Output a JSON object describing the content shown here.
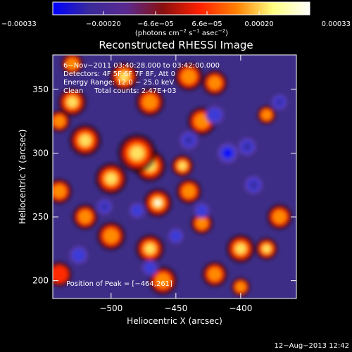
{
  "chart_data": {
    "type": "heatmap",
    "title": "Reconstructed RHESSI Image",
    "xlabel": "Heliocentric X (arcsec)",
    "ylabel": "Heliocentric Y (arcsec)",
    "xlim": [
      -545,
      -357
    ],
    "ylim": [
      186,
      377
    ],
    "x_ticks": [
      -500,
      -450,
      -400
    ],
    "y_ticks": [
      200,
      250,
      300,
      350
    ],
    "x_tick_labels": [
      "−500",
      "−450",
      "−400"
    ],
    "y_tick_labels": [
      "200",
      "250",
      "300",
      "350"
    ],
    "colorbar": {
      "range": [
        -0.00033,
        0.00033
      ],
      "tick_values": [
        -0.00033,
        -0.0002,
        -6.6e-05,
        6.6e-05,
        0.0002,
        0.00033
      ],
      "tick_labels": [
        "−0.00033",
        "−0.00020",
        "−6.6e−05",
        "6.6e−05",
        "0.00020",
        "0.00033"
      ],
      "unit_parts": [
        "(photons cm",
        "−2",
        " s",
        "−1",
        " asec",
        "−2",
        ")"
      ],
      "stops": [
        "#0000ff",
        "#3a2a9a",
        "#5a2a90",
        "#8a1010",
        "#ff2000",
        "#ff8000",
        "#ffff80",
        "#ffffff"
      ]
    },
    "annotations": {
      "time_range": "6−Nov−2011 03:40:28.000 to 03:42:00.000",
      "detectors": "Detectors: 4F 5F 6F 7F 8F, Att 0",
      "energy": "Energy Range: 12.0 − 25.0 keV",
      "method": "Clean     Total counts: 2.47E+03",
      "peak": "Position of Peak = [−464,261]"
    },
    "peak": [
      -464,
      261
    ],
    "blobs": [
      {
        "x": -464,
        "y": 261,
        "v": 0.00033,
        "r": 9
      },
      {
        "x": -470,
        "y": 290,
        "v": 0.00028,
        "r": 10
      },
      {
        "x": -480,
        "y": 300,
        "v": 0.00022,
        "r": 12
      },
      {
        "x": -500,
        "y": 280,
        "v": 0.0002,
        "r": 10
      },
      {
        "x": -520,
        "y": 310,
        "v": 0.00025,
        "r": 10
      },
      {
        "x": -530,
        "y": 340,
        "v": 0.0002,
        "r": 9
      },
      {
        "x": -540,
        "y": 325,
        "v": 0.00018,
        "r": 7
      },
      {
        "x": -490,
        "y": 360,
        "v": 0.00028,
        "r": 9
      },
      {
        "x": -470,
        "y": 340,
        "v": 0.00018,
        "r": 9
      },
      {
        "x": -530,
        "y": 370,
        "v": 0.00015,
        "r": 7
      },
      {
        "x": -540,
        "y": 270,
        "v": 0.00012,
        "r": 8
      },
      {
        "x": -430,
        "y": 325,
        "v": 0.00016,
        "r": 9
      },
      {
        "x": -440,
        "y": 360,
        "v": 0.00013,
        "r": 9
      },
      {
        "x": -420,
        "y": 355,
        "v": 0.00014,
        "r": 8
      },
      {
        "x": -440,
        "y": 270,
        "v": 0.00018,
        "r": 8
      },
      {
        "x": -445,
        "y": 290,
        "v": 0.0002,
        "r": 7
      },
      {
        "x": -400,
        "y": 225,
        "v": 0.0002,
        "r": 9
      },
      {
        "x": -380,
        "y": 225,
        "v": 0.00022,
        "r": 7
      },
      {
        "x": -370,
        "y": 250,
        "v": 0.00015,
        "r": 8
      },
      {
        "x": -380,
        "y": 330,
        "v": 0.00016,
        "r": 6
      },
      {
        "x": -500,
        "y": 235,
        "v": 0.00018,
        "r": 9
      },
      {
        "x": -470,
        "y": 225,
        "v": 0.0002,
        "r": 9
      },
      {
        "x": -520,
        "y": 250,
        "v": 0.00016,
        "r": 8
      },
      {
        "x": -460,
        "y": 200,
        "v": 0.00012,
        "r": 9
      },
      {
        "x": -420,
        "y": 205,
        "v": 0.00015,
        "r": 8
      },
      {
        "x": -400,
        "y": 195,
        "v": 0.00016,
        "r": 6
      },
      {
        "x": -430,
        "y": 245,
        "v": 0.00012,
        "r": 7
      },
      {
        "x": -540,
        "y": 205,
        "v": 0.0001,
        "r": 8
      },
      {
        "x": -410,
        "y": 300,
        "v": -0.0003,
        "r": 8
      },
      {
        "x": -395,
        "y": 305,
        "v": -0.00025,
        "r": 7
      },
      {
        "x": -440,
        "y": 310,
        "v": -0.0002,
        "r": 7
      },
      {
        "x": -420,
        "y": 330,
        "v": -0.00018,
        "r": 7
      },
      {
        "x": -370,
        "y": 340,
        "v": -0.0002,
        "r": 6
      },
      {
        "x": -505,
        "y": 258,
        "v": -0.00022,
        "r": 6
      },
      {
        "x": -480,
        "y": 255,
        "v": -0.00015,
        "r": 6
      },
      {
        "x": -390,
        "y": 275,
        "v": -0.00026,
        "r": 7
      },
      {
        "x": -470,
        "y": 210,
        "v": -0.00015,
        "r": 6
      },
      {
        "x": -430,
        "y": 255,
        "v": -0.0001,
        "r": 6
      },
      {
        "x": -525,
        "y": 220,
        "v": -0.0001,
        "r": 7
      },
      {
        "x": -450,
        "y": 235,
        "v": -0.0001,
        "r": 6
      }
    ]
  },
  "footer": {
    "timestamp": "12−Aug−2013 12:42"
  }
}
